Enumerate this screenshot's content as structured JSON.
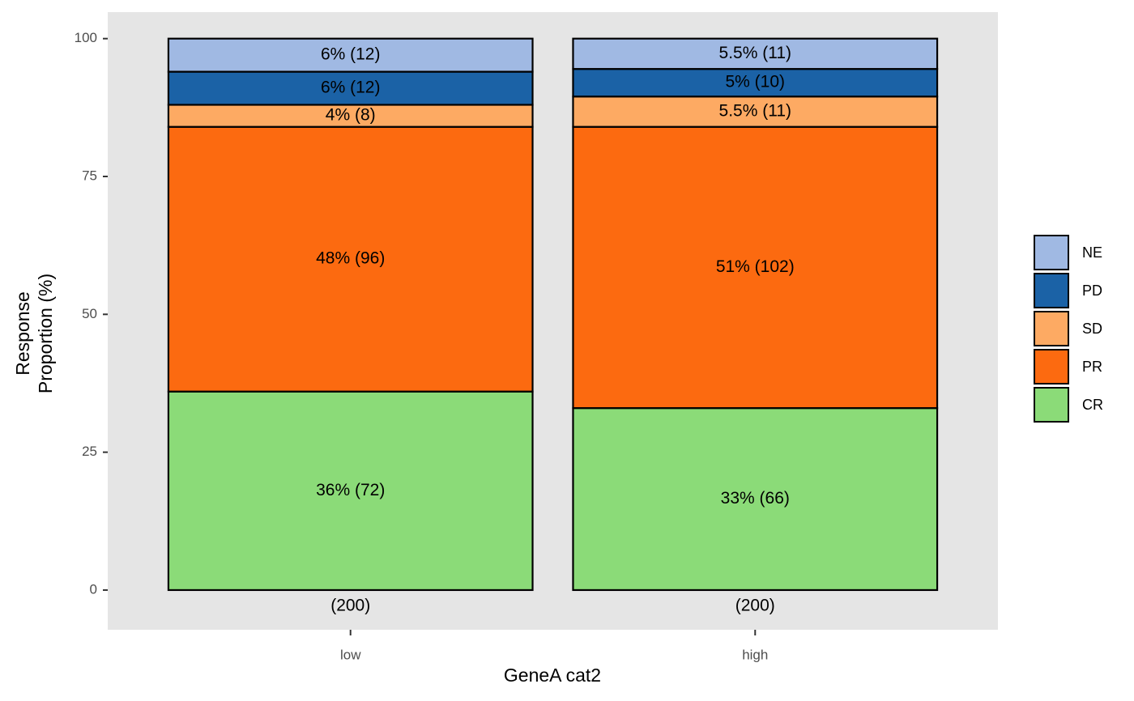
{
  "chart_data": {
    "type": "stacked_bar",
    "categories": [
      "low",
      "high"
    ],
    "count_labels": [
      "(200)",
      "(200)"
    ],
    "xlabel": "GeneA cat2",
    "ylabel": [
      "Response",
      "Proportion (%)"
    ],
    "ylim": [
      -7.2,
      104.8
    ],
    "yticks": [
      0,
      25,
      50,
      75,
      100
    ],
    "grid": false,
    "legend": "right",
    "series": [
      {
        "name": "CR",
        "color": "#8bdb78",
        "values": [
          36,
          33
        ],
        "value_labels": [
          "36% (72)",
          "33% (66)"
        ]
      },
      {
        "name": "PR",
        "color": "#fc6a10",
        "values": [
          48,
          51
        ],
        "value_labels": [
          "48% (96)",
          "51% (102)"
        ]
      },
      {
        "name": "SD",
        "color": "#fdaa63",
        "values": [
          4,
          5.5
        ],
        "value_labels": [
          "4% (8)",
          "5.5% (11)"
        ]
      },
      {
        "name": "PD",
        "color": "#1b62a6",
        "values": [
          6,
          5
        ],
        "value_labels": [
          "6% (12)",
          "5% (10)"
        ]
      },
      {
        "name": "NE",
        "color": "#a0b9e3",
        "values": [
          6,
          5.5
        ],
        "value_labels": [
          "6% (12)",
          "5.5% (11)"
        ]
      }
    ]
  }
}
